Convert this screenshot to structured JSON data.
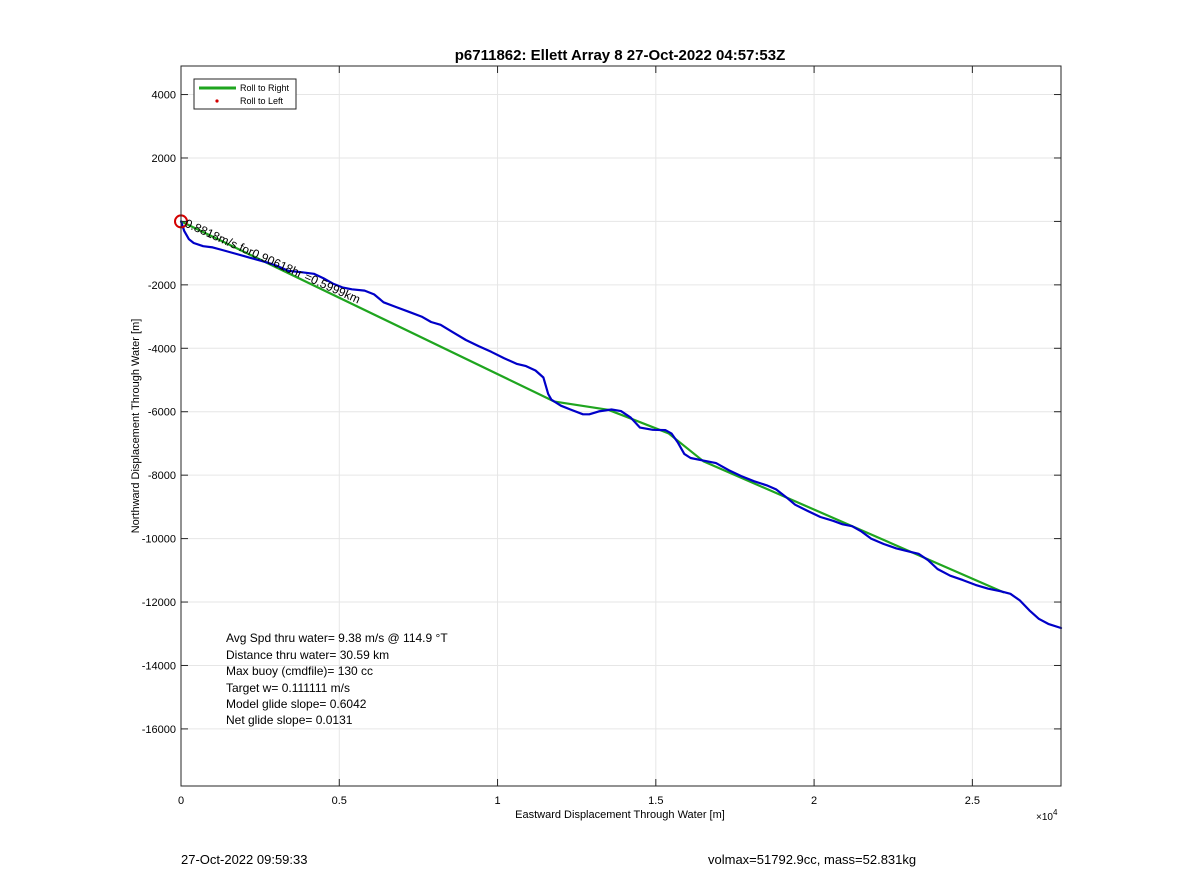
{
  "footer": {
    "date": "27-Oct-2022 09:59:33",
    "params": "volmax=51792.9cc, mass=52.831kg"
  },
  "colors": {
    "track": "#0000c8",
    "fit": "#1fa51f",
    "marker": "#d40000",
    "grid": "#e6e6e6",
    "axis": "#262626"
  },
  "chart_data": {
    "type": "line",
    "title": "p6711862: Ellett Array 8 27-Oct-2022 04:57:53Z",
    "xlabel": "Eastward Displacement Through Water [m]",
    "ylabel": "Northward Displacement Through Water [m]",
    "x_exponent_label": "×10",
    "x_exponent_power": "4",
    "xlim": [
      0,
      27800
    ],
    "ylim": [
      -17800,
      4900
    ],
    "xticks": [
      0,
      5000,
      10000,
      15000,
      20000,
      25000
    ],
    "xtick_labels": [
      "0",
      "0.5",
      "1",
      "1.5",
      "2",
      "2.5"
    ],
    "yticks": [
      4000,
      2000,
      0,
      -2000,
      -4000,
      -6000,
      -8000,
      -10000,
      -12000,
      -14000,
      -16000
    ],
    "ytick_labels": [
      "4000",
      "2000",
      "",
      "-2000",
      "-4000",
      "-6000",
      "-8000",
      "-10000",
      "-12000",
      "-14000",
      "-16000"
    ],
    "grid": true,
    "legend": {
      "location": "top-left",
      "entries": [
        {
          "label": "Roll to Right",
          "style": "line",
          "color": "#1fa51f"
        },
        {
          "label": "Roll to Left",
          "style": "dot",
          "color": "#d40000"
        }
      ]
    },
    "series": [
      {
        "style": "line",
        "color": "#0000c8",
        "points": [
          [
            0,
            0
          ],
          [
            100,
            -300
          ],
          [
            250,
            -560
          ],
          [
            400,
            -680
          ],
          [
            700,
            -780
          ],
          [
            1000,
            -820
          ],
          [
            1300,
            -900
          ],
          [
            1700,
            -1010
          ],
          [
            2200,
            -1150
          ],
          [
            2700,
            -1290
          ],
          [
            3000,
            -1390
          ],
          [
            3400,
            -1560
          ],
          [
            3800,
            -1600
          ],
          [
            4200,
            -1650
          ],
          [
            4500,
            -1790
          ],
          [
            4800,
            -1960
          ],
          [
            5100,
            -2080
          ],
          [
            5400,
            -2140
          ],
          [
            5800,
            -2180
          ],
          [
            6100,
            -2300
          ],
          [
            6400,
            -2550
          ],
          [
            6800,
            -2700
          ],
          [
            7200,
            -2850
          ],
          [
            7600,
            -3000
          ],
          [
            7900,
            -3170
          ],
          [
            8200,
            -3260
          ],
          [
            8600,
            -3500
          ],
          [
            9000,
            -3740
          ],
          [
            9400,
            -3930
          ],
          [
            9800,
            -4110
          ],
          [
            10200,
            -4310
          ],
          [
            10600,
            -4490
          ],
          [
            10900,
            -4560
          ],
          [
            11200,
            -4700
          ],
          [
            11450,
            -4920
          ],
          [
            11600,
            -5440
          ],
          [
            11700,
            -5620
          ],
          [
            12000,
            -5810
          ],
          [
            12300,
            -5930
          ],
          [
            12700,
            -6080
          ],
          [
            12900,
            -6080
          ],
          [
            13200,
            -5990
          ],
          [
            13600,
            -5930
          ],
          [
            13900,
            -5980
          ],
          [
            14200,
            -6180
          ],
          [
            14500,
            -6500
          ],
          [
            14900,
            -6570
          ],
          [
            15300,
            -6580
          ],
          [
            15500,
            -6690
          ],
          [
            15700,
            -6980
          ],
          [
            15900,
            -7330
          ],
          [
            16100,
            -7460
          ],
          [
            16500,
            -7540
          ],
          [
            16900,
            -7620
          ],
          [
            17300,
            -7840
          ],
          [
            17700,
            -8030
          ],
          [
            18100,
            -8190
          ],
          [
            18500,
            -8320
          ],
          [
            18800,
            -8450
          ],
          [
            19100,
            -8680
          ],
          [
            19400,
            -8930
          ],
          [
            19800,
            -9130
          ],
          [
            20200,
            -9320
          ],
          [
            20600,
            -9440
          ],
          [
            20900,
            -9550
          ],
          [
            21200,
            -9610
          ],
          [
            21500,
            -9780
          ],
          [
            21800,
            -10000
          ],
          [
            22200,
            -10170
          ],
          [
            22600,
            -10310
          ],
          [
            23000,
            -10410
          ],
          [
            23300,
            -10480
          ],
          [
            23600,
            -10680
          ],
          [
            23900,
            -10960
          ],
          [
            24300,
            -11170
          ],
          [
            24700,
            -11310
          ],
          [
            25100,
            -11460
          ],
          [
            25500,
            -11580
          ],
          [
            25900,
            -11660
          ],
          [
            26200,
            -11740
          ],
          [
            26500,
            -11950
          ],
          [
            26800,
            -12260
          ],
          [
            27100,
            -12530
          ],
          [
            27400,
            -12690
          ],
          [
            27800,
            -12820
          ]
        ]
      },
      {
        "style": "line",
        "color": "#1fa51f",
        "points": [
          [
            0,
            0
          ],
          [
            11800,
            -5680
          ],
          [
            13500,
            -5940
          ],
          [
            15400,
            -6680
          ],
          [
            16500,
            -7560
          ],
          [
            26000,
            -11700
          ]
        ]
      },
      {
        "style": "marker",
        "color": "#d40000",
        "points": [
          [
            0,
            0
          ]
        ]
      }
    ],
    "annotations": [
      {
        "text": "0.8818m/s for0.90618hr =0.5999km",
        "x": 0,
        "y": -90,
        "rotation_deg": 24
      }
    ],
    "info_box": [
      "Avg Spd thru water=  9.38 m/s @ 114.9 °T",
      "Distance thru water= 30.59 km",
      "Max buoy (cmdfile)= 130 cc",
      "Target w= 0.111111 m/s",
      "Model glide slope= 0.6042",
      "Net glide slope= 0.0131"
    ]
  }
}
